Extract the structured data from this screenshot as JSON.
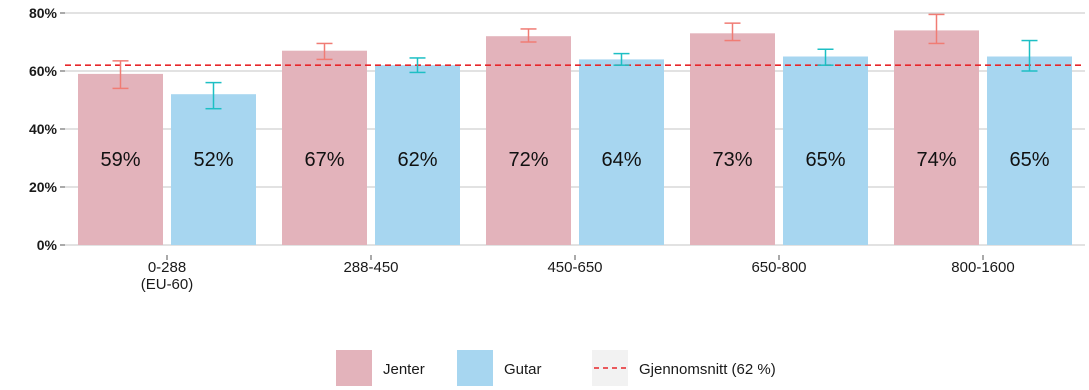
{
  "chart_data": {
    "type": "bar",
    "categories": [
      [
        "0-288",
        "(EU-60)"
      ],
      [
        "288-450"
      ],
      [
        "450-650"
      ],
      [
        "650-800"
      ],
      [
        "800-1600"
      ]
    ],
    "series": [
      {
        "name": "Jenter",
        "color": "#e3b3bb",
        "error_color": "#f07c74",
        "values": [
          59,
          67,
          72,
          73,
          74
        ],
        "labels": [
          "59%",
          "67%",
          "72%",
          "73%",
          "74%"
        ],
        "err_low": [
          54,
          64,
          70,
          70.5,
          69.5
        ],
        "err_high": [
          63.5,
          69.5,
          74.5,
          76.5,
          79.5
        ]
      },
      {
        "name": "Gutar",
        "color": "#a7d6f0",
        "error_color": "#1dbfc4",
        "values": [
          52,
          62,
          64,
          65,
          65
        ],
        "labels": [
          "52%",
          "62%",
          "64%",
          "65%",
          "65%"
        ],
        "err_low": [
          47,
          59.5,
          62,
          62,
          60
        ],
        "err_high": [
          56,
          64.5,
          66,
          67.5,
          70.5
        ]
      }
    ],
    "reference_line": {
      "value": 62,
      "label": "Gjennomsnitt (62 %)",
      "color": "#e8262a",
      "style": "dashed"
    },
    "yticks": [
      0,
      20,
      40,
      60,
      80
    ],
    "ytick_labels": [
      "0%",
      "20%",
      "40%",
      "60%",
      "80%"
    ],
    "ylim": [
      0,
      80
    ],
    "xlabel": "",
    "ylabel": "",
    "title": "",
    "grid": "horizontal",
    "legend_position": "bottom"
  },
  "legend": {
    "items": [
      "Jenter",
      "Gutar",
      "Gjennomsnitt (62 %)"
    ]
  }
}
